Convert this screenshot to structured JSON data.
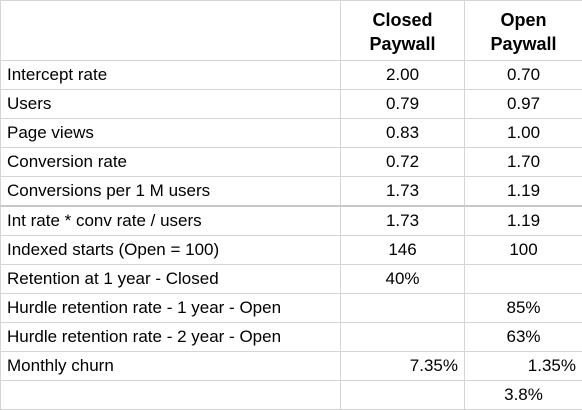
{
  "header": {
    "closed": [
      "Closed",
      "Paywall"
    ],
    "open": [
      "Open",
      "Paywall"
    ]
  },
  "rows": [
    {
      "label": "Intercept rate",
      "closed": "2.00",
      "open": "0.70"
    },
    {
      "label": "Users",
      "closed": "0.79",
      "open": "0.97"
    },
    {
      "label": "Page views",
      "closed": "0.83",
      "open": "1.00"
    },
    {
      "label": "Conversion rate",
      "closed": "0.72",
      "open": "1.70"
    },
    {
      "label": "Conversions per 1 M users",
      "closed": "1.73",
      "open": "1.19"
    },
    {
      "label": "Int rate * conv rate / users",
      "closed": "1.73",
      "open": "1.19"
    },
    {
      "label": "Indexed starts (Open = 100)",
      "closed": "146",
      "open": "100"
    },
    {
      "label": "Retention at 1 year - Closed",
      "closed": "40%",
      "open": ""
    },
    {
      "label": "Hurdle retention rate - 1 year - Open",
      "closed": "",
      "open": "85%"
    },
    {
      "label": "Hurdle retention rate - 2 year - Open",
      "closed": "",
      "open": "63%"
    },
    {
      "label": "Monthly churn",
      "closed": "7.35%",
      "open": "1.35%"
    },
    {
      "label": "",
      "closed": "",
      "open": "3.8%"
    }
  ]
}
